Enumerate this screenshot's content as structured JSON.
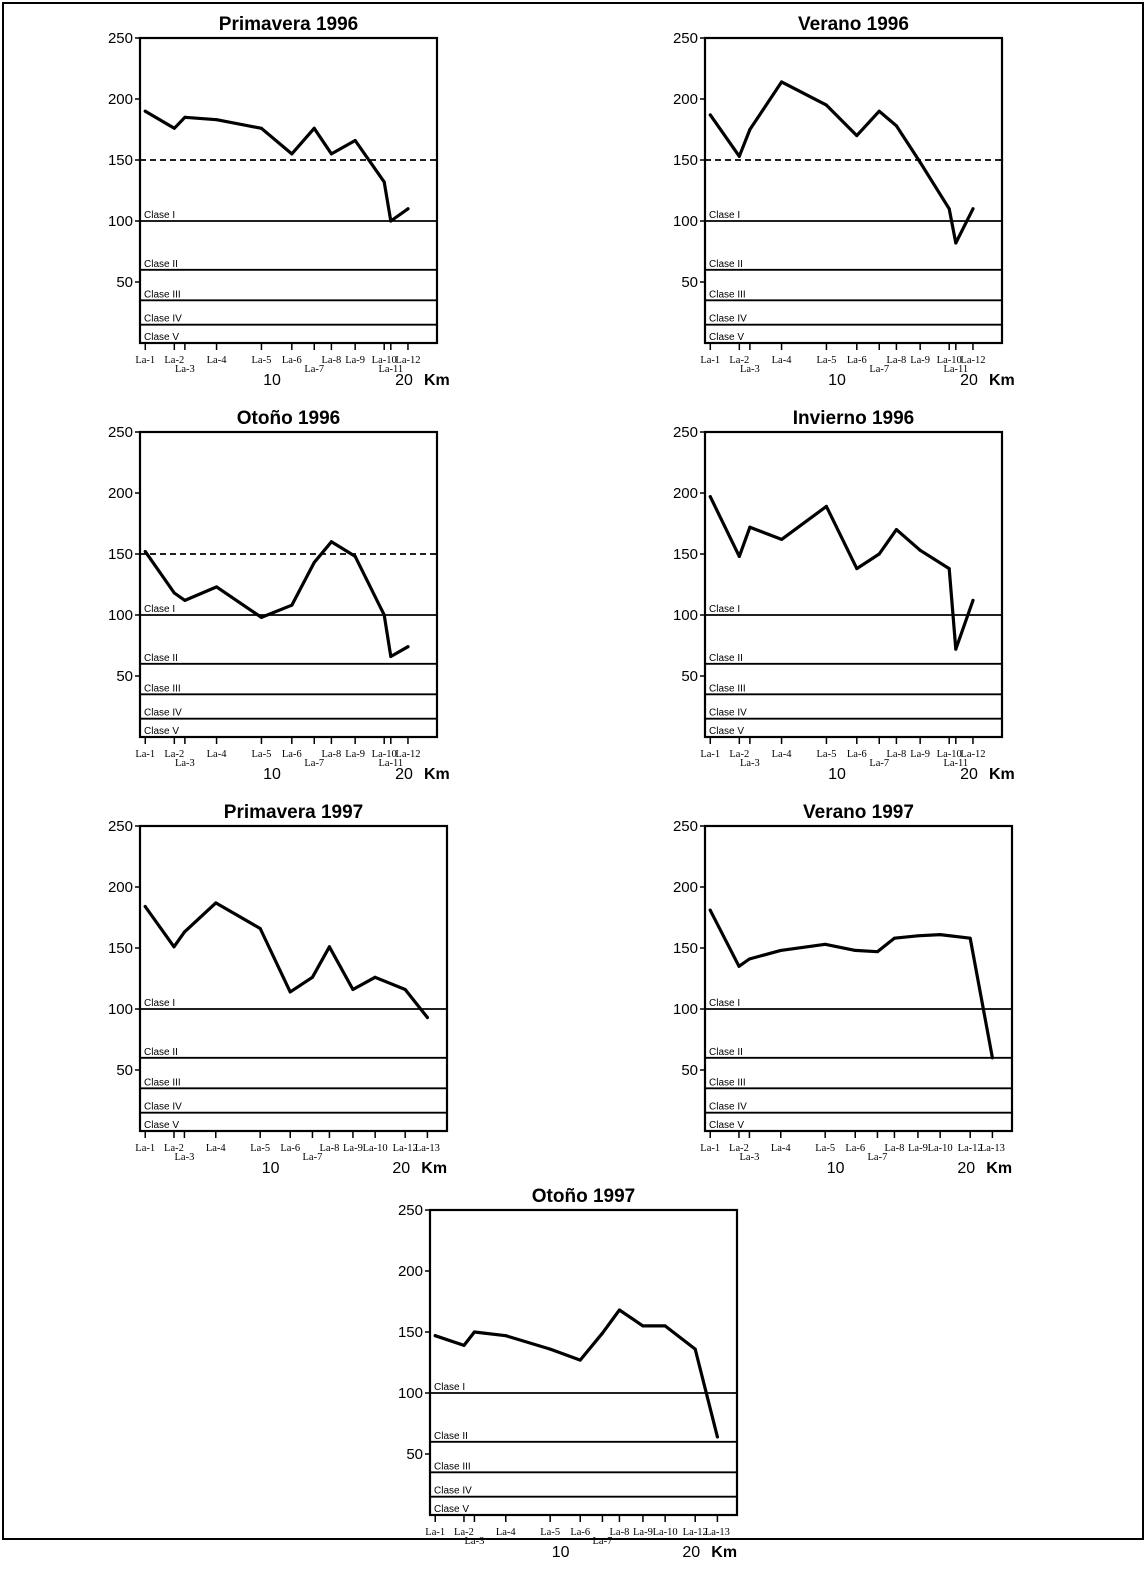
{
  "figure": {
    "x_unit": "Km",
    "x_tick_labels": [
      "10",
      "20"
    ]
  },
  "chart_data": [
    {
      "type": "line",
      "title": "Primavera 1996",
      "ylim": [
        0,
        250
      ],
      "y_ticks": [
        50,
        100,
        150,
        200,
        250
      ],
      "xlim": [
        0,
        22.5
      ],
      "x_ticks": [
        10,
        20
      ],
      "xlabel": "Km",
      "reference_line": {
        "y": 150,
        "style": "dashed"
      },
      "class_limits": [
        {
          "label": "Clase I",
          "y": 100
        },
        {
          "label": "Clase II",
          "y": 60
        },
        {
          "label": "Clase III",
          "y": 35
        },
        {
          "label": "Clase IV",
          "y": 15
        },
        {
          "label": "Clase V",
          "y": 0
        }
      ],
      "stations": [
        {
          "label": "La-1",
          "km": 0.4
        },
        {
          "label": "La-2",
          "km": 2.6
        },
        {
          "label": "La-3",
          "km": 3.4
        },
        {
          "label": "La-4",
          "km": 5.8
        },
        {
          "label": "La-5",
          "km": 9.2
        },
        {
          "label": "La-6",
          "km": 11.5
        },
        {
          "label": "La-7",
          "km": 13.2
        },
        {
          "label": "La-8",
          "km": 14.5
        },
        {
          "label": "La-9",
          "km": 16.3
        },
        {
          "label": "La-10",
          "km": 18.5
        },
        {
          "label": "La-11",
          "km": 19.0
        },
        {
          "label": "La-12",
          "km": 20.3
        }
      ],
      "series": [
        {
          "x": [
            0.4,
            2.6,
            3.4,
            5.8,
            9.2,
            11.5,
            13.2,
            14.5,
            16.3,
            18.5,
            19.0,
            20.3
          ],
          "y": [
            190,
            176,
            185,
            183,
            176,
            155,
            176,
            155,
            166,
            132,
            100,
            110
          ]
        }
      ]
    },
    {
      "type": "line",
      "title": "Verano 1996",
      "ylim": [
        0,
        250
      ],
      "y_ticks": [
        50,
        100,
        150,
        200,
        250
      ],
      "xlim": [
        0,
        22.5
      ],
      "x_ticks": [
        10,
        20
      ],
      "xlabel": "Km",
      "reference_line": {
        "y": 150,
        "style": "dashed"
      },
      "class_limits": [
        {
          "label": "Clase I",
          "y": 100
        },
        {
          "label": "Clase II",
          "y": 60
        },
        {
          "label": "Clase III",
          "y": 35
        },
        {
          "label": "Clase IV",
          "y": 15
        },
        {
          "label": "Clase V",
          "y": 0
        }
      ],
      "stations": [
        {
          "label": "La-1",
          "km": 0.4
        },
        {
          "label": "La-2",
          "km": 2.6
        },
        {
          "label": "La-3",
          "km": 3.4
        },
        {
          "label": "La-4",
          "km": 5.8
        },
        {
          "label": "La-5",
          "km": 9.2
        },
        {
          "label": "La-6",
          "km": 11.5
        },
        {
          "label": "La-7",
          "km": 13.2
        },
        {
          "label": "La-8",
          "km": 14.5
        },
        {
          "label": "La-9",
          "km": 16.3
        },
        {
          "label": "La-10",
          "km": 18.5
        },
        {
          "label": "La-11",
          "km": 19.0
        },
        {
          "label": "La-12",
          "km": 20.3
        }
      ],
      "series": [
        {
          "x": [
            0.4,
            2.6,
            3.4,
            5.8,
            9.2,
            11.5,
            13.2,
            14.5,
            16.3,
            18.5,
            19.0,
            20.3
          ],
          "y": [
            187,
            153,
            175,
            214,
            195,
            170,
            190,
            178,
            148,
            110,
            82,
            110
          ]
        }
      ]
    },
    {
      "type": "line",
      "title": "Otoño 1996",
      "ylim": [
        0,
        250
      ],
      "y_ticks": [
        50,
        100,
        150,
        200,
        250
      ],
      "xlim": [
        0,
        22.5
      ],
      "x_ticks": [
        10,
        20
      ],
      "xlabel": "Km",
      "reference_line": {
        "y": 150,
        "style": "dashed"
      },
      "class_limits": [
        {
          "label": "Clase I",
          "y": 100
        },
        {
          "label": "Clase II",
          "y": 60
        },
        {
          "label": "Clase III",
          "y": 35
        },
        {
          "label": "Clase IV",
          "y": 15
        },
        {
          "label": "Clase V",
          "y": 0
        }
      ],
      "stations": [
        {
          "label": "La-1",
          "km": 0.4
        },
        {
          "label": "La-2",
          "km": 2.6
        },
        {
          "label": "La-3",
          "km": 3.4
        },
        {
          "label": "La-4",
          "km": 5.8
        },
        {
          "label": "La-5",
          "km": 9.2
        },
        {
          "label": "La-6",
          "km": 11.5
        },
        {
          "label": "La-7",
          "km": 13.2
        },
        {
          "label": "La-8",
          "km": 14.5
        },
        {
          "label": "La-9",
          "km": 16.3
        },
        {
          "label": "La-10",
          "km": 18.5
        },
        {
          "label": "La-11",
          "km": 19.0
        },
        {
          "label": "La-12",
          "km": 20.3
        }
      ],
      "series": [
        {
          "x": [
            0.4,
            2.6,
            3.4,
            5.8,
            9.2,
            11.5,
            13.2,
            14.5,
            16.3,
            18.5,
            19.0,
            20.3
          ],
          "y": [
            152,
            118,
            112,
            123,
            98,
            108,
            143,
            160,
            148,
            100,
            66,
            74
          ]
        }
      ]
    },
    {
      "type": "line",
      "title": "Invierno 1996",
      "ylim": [
        0,
        250
      ],
      "y_ticks": [
        50,
        100,
        150,
        200,
        250
      ],
      "xlim": [
        0,
        22.5
      ],
      "x_ticks": [
        10,
        20
      ],
      "xlabel": "Km",
      "class_limits": [
        {
          "label": "Clase I",
          "y": 100
        },
        {
          "label": "Clase II",
          "y": 60
        },
        {
          "label": "Clase III",
          "y": 35
        },
        {
          "label": "Clase IV",
          "y": 15
        },
        {
          "label": "Clase V",
          "y": 0
        }
      ],
      "stations": [
        {
          "label": "La-1",
          "km": 0.4
        },
        {
          "label": "La-2",
          "km": 2.6
        },
        {
          "label": "La-3",
          "km": 3.4
        },
        {
          "label": "La-4",
          "km": 5.8
        },
        {
          "label": "La-5",
          "km": 9.2
        },
        {
          "label": "La-6",
          "km": 11.5
        },
        {
          "label": "La-7",
          "km": 13.2
        },
        {
          "label": "La-8",
          "km": 14.5
        },
        {
          "label": "La-9",
          "km": 16.3
        },
        {
          "label": "La-10",
          "km": 18.5
        },
        {
          "label": "La-11",
          "km": 19.0
        },
        {
          "label": "La-12",
          "km": 20.3
        }
      ],
      "series": [
        {
          "x": [
            0.4,
            2.6,
            3.4,
            5.8,
            9.2,
            11.5,
            13.2,
            14.5,
            16.3,
            18.5,
            19.0,
            20.3
          ],
          "y": [
            197,
            148,
            172,
            162,
            189,
            138,
            150,
            170,
            153,
            138,
            72,
            112
          ]
        }
      ]
    },
    {
      "type": "line",
      "title": "Primavera 1997",
      "ylim": [
        0,
        250
      ],
      "y_ticks": [
        50,
        100,
        150,
        200,
        250
      ],
      "xlim": [
        0,
        23.5
      ],
      "x_ticks": [
        10,
        20
      ],
      "xlabel": "Km",
      "class_limits": [
        {
          "label": "Clase I",
          "y": 100
        },
        {
          "label": "Clase II",
          "y": 60
        },
        {
          "label": "Clase III",
          "y": 35
        },
        {
          "label": "Clase IV",
          "y": 15
        },
        {
          "label": "Clase V",
          "y": 0
        }
      ],
      "stations": [
        {
          "label": "La-1",
          "km": 0.4
        },
        {
          "label": "La-2",
          "km": 2.6
        },
        {
          "label": "La-3",
          "km": 3.4
        },
        {
          "label": "La-4",
          "km": 5.8
        },
        {
          "label": "La-5",
          "km": 9.2
        },
        {
          "label": "La-6",
          "km": 11.5
        },
        {
          "label": "La-7",
          "km": 13.2
        },
        {
          "label": "La-8",
          "km": 14.5
        },
        {
          "label": "La-9",
          "km": 16.3
        },
        {
          "label": "La-10",
          "km": 18.0
        },
        {
          "label": "La-12",
          "km": 20.3
        },
        {
          "label": "La-13",
          "km": 22.0
        }
      ],
      "series": [
        {
          "x": [
            0.4,
            2.6,
            3.4,
            5.8,
            9.2,
            11.5,
            13.2,
            14.5,
            16.3,
            18.0,
            20.3,
            22.0
          ],
          "y": [
            184,
            151,
            163,
            187,
            166,
            114,
            126,
            151,
            116,
            126,
            116,
            93
          ]
        }
      ]
    },
    {
      "type": "line",
      "title": "Verano 1997",
      "ylim": [
        0,
        250
      ],
      "y_ticks": [
        50,
        100,
        150,
        200,
        250
      ],
      "xlim": [
        0,
        23.5
      ],
      "x_ticks": [
        10,
        20
      ],
      "xlabel": "Km",
      "class_limits": [
        {
          "label": "Clase I",
          "y": 100
        },
        {
          "label": "Clase II",
          "y": 60
        },
        {
          "label": "Clase III",
          "y": 35
        },
        {
          "label": "Clase IV",
          "y": 15
        },
        {
          "label": "Clase V",
          "y": 0
        }
      ],
      "stations": [
        {
          "label": "La-1",
          "km": 0.4
        },
        {
          "label": "La-2",
          "km": 2.6
        },
        {
          "label": "La-3",
          "km": 3.4
        },
        {
          "label": "La-4",
          "km": 5.8
        },
        {
          "label": "La-5",
          "km": 9.2
        },
        {
          "label": "La-6",
          "km": 11.5
        },
        {
          "label": "La-7",
          "km": 13.2
        },
        {
          "label": "La-8",
          "km": 14.5
        },
        {
          "label": "La-9",
          "km": 16.3
        },
        {
          "label": "La-10",
          "km": 18.0
        },
        {
          "label": "La-12",
          "km": 20.3
        },
        {
          "label": "La-13",
          "km": 22.0
        }
      ],
      "series": [
        {
          "x": [
            0.4,
            2.6,
            3.4,
            5.8,
            9.2,
            11.5,
            13.2,
            14.5,
            16.3,
            18.0,
            20.3,
            22.0
          ],
          "y": [
            181,
            135,
            141,
            148,
            153,
            148,
            147,
            158,
            160,
            161,
            158,
            60
          ]
        }
      ]
    },
    {
      "type": "line",
      "title": "Otoño 1997",
      "ylim": [
        0,
        250
      ],
      "y_ticks": [
        50,
        100,
        150,
        200,
        250
      ],
      "xlim": [
        0,
        23.5
      ],
      "x_ticks": [
        10,
        20
      ],
      "xlabel": "Km",
      "class_limits": [
        {
          "label": "Clase I",
          "y": 100
        },
        {
          "label": "Clase II",
          "y": 60
        },
        {
          "label": "Clase III",
          "y": 35
        },
        {
          "label": "Clase IV",
          "y": 15
        },
        {
          "label": "Clase V",
          "y": 0
        }
      ],
      "stations": [
        {
          "label": "La-1",
          "km": 0.4
        },
        {
          "label": "La-2",
          "km": 2.6
        },
        {
          "label": "La-3",
          "km": 3.4
        },
        {
          "label": "La-4",
          "km": 5.8
        },
        {
          "label": "La-5",
          "km": 9.2
        },
        {
          "label": "La-6",
          "km": 11.5
        },
        {
          "label": "La-7",
          "km": 13.2
        },
        {
          "label": "La-8",
          "km": 14.5
        },
        {
          "label": "La-9",
          "km": 16.3
        },
        {
          "label": "La-10",
          "km": 18.0
        },
        {
          "label": "La-12",
          "km": 20.3
        },
        {
          "label": "La-13",
          "km": 22.0
        }
      ],
      "series": [
        {
          "x": [
            0.4,
            2.6,
            3.4,
            5.8,
            9.2,
            11.5,
            13.2,
            14.5,
            16.3,
            18.0,
            20.3,
            22.0
          ],
          "y": [
            147,
            139,
            150,
            147,
            136,
            127,
            149,
            168,
            155,
            155,
            136,
            64
          ]
        }
      ]
    }
  ]
}
